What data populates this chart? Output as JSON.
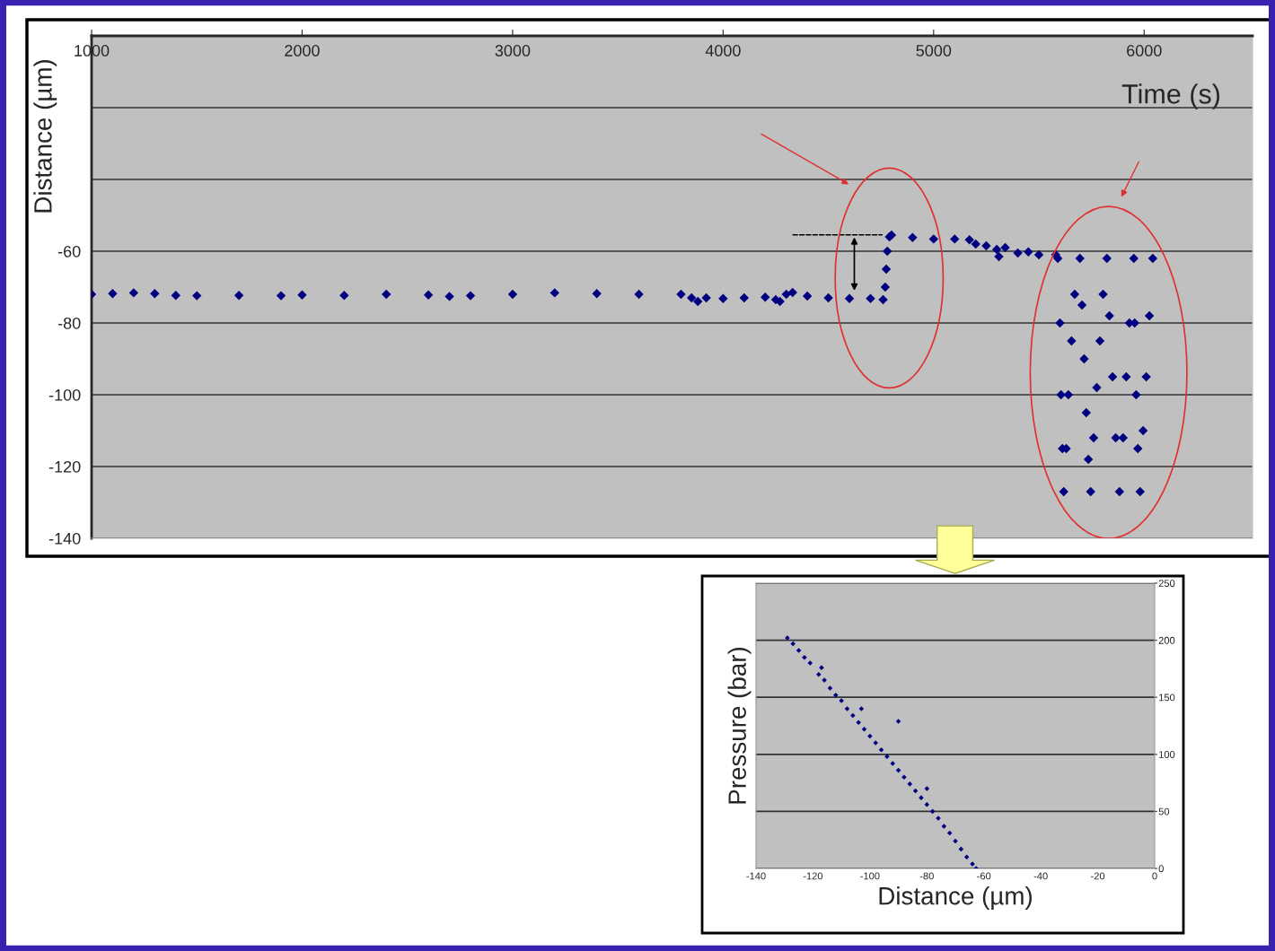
{
  "chart_data": [
    {
      "type": "scatter",
      "xlabel": "Time (s)",
      "ylabel": "Distance (µm)",
      "marker": "diamond",
      "grid": "y",
      "xlim": [
        1000,
        6515
      ],
      "xticks": [
        1000,
        2000,
        3000,
        4000,
        5000,
        6000
      ],
      "ylim": [
        -140,
        0
      ],
      "yticks": [
        {
          "value": 0,
          "label": null
        },
        {
          "value": -20,
          "label": null
        },
        {
          "value": -40,
          "label": null
        },
        -60,
        -80,
        -100,
        -120,
        -140
      ],
      "series": [
        {
          "color": "#000080",
          "x": [
            1000,
            1100,
            1200,
            1300,
            1400,
            1500,
            1700,
            1900,
            2000,
            2200,
            2400,
            2600,
            2700,
            2800,
            3000,
            3200,
            3400,
            3600,
            3800,
            3850,
            3880,
            3920,
            4000,
            4100,
            4200,
            4250,
            4270,
            4300,
            4330,
            4400,
            4500,
            4600,
            4700,
            4760,
            4770,
            4775,
            4780,
            4790,
            4800,
            4900,
            5000,
            5100,
            5170,
            5200,
            5250,
            5300,
            5310,
            5340,
            5400,
            5450,
            5500,
            5580,
            5590,
            5600,
            5605,
            5612,
            5618,
            5630,
            5640,
            5655,
            5670,
            5695,
            5705,
            5715,
            5725,
            5735,
            5746,
            5760,
            5775,
            5790,
            5805,
            5823,
            5835,
            5850,
            5865,
            5883,
            5900,
            5915,
            5930,
            5951,
            5955,
            5962,
            5970,
            5981,
            5995,
            6010,
            6025,
            6041
          ],
          "values": [
            -72,
            -71.8,
            -71.6,
            -71.8,
            -72.3,
            -72.4,
            -72.3,
            -72.4,
            -72.2,
            -72.3,
            -72,
            -72.2,
            -72.6,
            -72.4,
            -72,
            -71.6,
            -71.8,
            -72,
            -72,
            -73,
            -74,
            -73,
            -73.2,
            -73,
            -72.8,
            -73.5,
            -74,
            -72,
            -71.5,
            -72.5,
            -73,
            -73.2,
            -73.2,
            -73.5,
            -70,
            -65,
            -60,
            -56,
            -55.5,
            -56.2,
            -56.6,
            -56.6,
            -56.8,
            -58,
            -58.5,
            -59.5,
            -61.5,
            -59,
            -60.5,
            -60.2,
            -61,
            -61,
            -62,
            -80,
            -100,
            -115,
            -127,
            -115,
            -100,
            -85,
            -72,
            -62,
            -75,
            -90,
            -105,
            -118,
            -127,
            -112,
            -98,
            -85,
            -72,
            -62,
            -78,
            -95,
            -112,
            -127,
            -112,
            -95,
            -80,
            -62,
            -80,
            -100,
            -115,
            -127,
            -110,
            -95,
            -78,
            -62
          ]
        }
      ]
    },
    {
      "type": "scatter",
      "xlabel": "Distance (µm)",
      "ylabel": "Pressure (bar)",
      "marker": "diamond",
      "grid": "y",
      "xlim": [
        -140,
        0
      ],
      "xticks": [
        -140,
        -120,
        -100,
        -80,
        -60,
        -40,
        -20,
        0
      ],
      "ylim": [
        0,
        250
      ],
      "yticks": [
        0,
        50,
        100,
        150,
        200,
        250
      ],
      "series": [
        {
          "color": "#000080",
          "x": [
            -129,
            -127,
            -125,
            -123,
            -121,
            -118,
            -116,
            -114,
            -112,
            -110,
            -108,
            -106,
            -104,
            -102,
            -100,
            -98,
            -96,
            -94,
            -92,
            -90,
            -88,
            -86,
            -84,
            -82,
            -80,
            -78,
            -76,
            -74,
            -72,
            -70,
            -68,
            -66,
            -64,
            -62.7,
            -117,
            -90,
            -80,
            -103
          ],
          "values": [
            202,
            197,
            191,
            185,
            180,
            170,
            165,
            158,
            152,
            147,
            140,
            134,
            128,
            122,
            116,
            110,
            104,
            98,
            92,
            86,
            80,
            74,
            68,
            62,
            56,
            50,
            44,
            37,
            31,
            24,
            17,
            10,
            4,
            0,
            176,
            129,
            70,
            140
          ]
        }
      ]
    }
  ]
}
